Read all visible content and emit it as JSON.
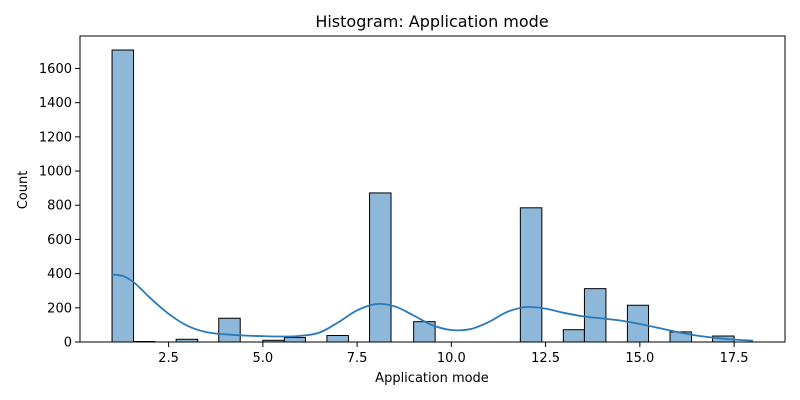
{
  "chart_data": {
    "type": "bar",
    "title": "Histogram: Application mode",
    "xlabel": "Application mode",
    "ylabel": "Count",
    "xlim": [
      0.15,
      18.85
    ],
    "ylim": [
      0,
      1790
    ],
    "grid": false,
    "bar_color": "#8db8da",
    "bar_edge_color": "#000000",
    "kde_color": "#2a7ab8",
    "x_ticks": [
      2.5,
      5.0,
      7.5,
      10.0,
      12.5,
      15.0,
      17.5
    ],
    "x_tick_labels": [
      "2.5",
      "5.0",
      "7.5",
      "10.0",
      "12.5",
      "15.0",
      "17.5"
    ],
    "y_ticks": [
      0,
      200,
      400,
      600,
      800,
      1000,
      1200,
      1400,
      1600
    ],
    "y_tick_labels": [
      "0",
      "200",
      "400",
      "600",
      "800",
      "1000",
      "1200",
      "1400",
      "1600"
    ],
    "bins": [
      {
        "x0": 1.0,
        "x1": 1.57,
        "count": 1708
      },
      {
        "x0": 1.57,
        "x1": 2.13,
        "count": 3
      },
      {
        "x0": 2.7,
        "x1": 3.27,
        "count": 16
      },
      {
        "x0": 3.83,
        "x1": 4.4,
        "count": 139
      },
      {
        "x0": 5.0,
        "x1": 5.57,
        "count": 10
      },
      {
        "x0": 5.57,
        "x1": 6.13,
        "count": 26
      },
      {
        "x0": 6.7,
        "x1": 7.27,
        "count": 38
      },
      {
        "x0": 7.83,
        "x1": 8.4,
        "count": 872
      },
      {
        "x0": 9.0,
        "x1": 9.57,
        "count": 119
      },
      {
        "x0": 11.83,
        "x1": 12.4,
        "count": 785
      },
      {
        "x0": 12.97,
        "x1": 13.53,
        "count": 72
      },
      {
        "x0": 13.53,
        "x1": 14.1,
        "count": 312
      },
      {
        "x0": 14.67,
        "x1": 15.23,
        "count": 215
      },
      {
        "x0": 15.8,
        "x1": 16.37,
        "count": 59
      },
      {
        "x0": 16.93,
        "x1": 17.5,
        "count": 35
      }
    ],
    "kde": {
      "x": [
        1.0,
        1.3,
        1.6,
        2.0,
        2.5,
        3.0,
        3.5,
        4.0,
        4.5,
        5.0,
        5.5,
        6.0,
        6.5,
        7.0,
        7.5,
        8.0,
        8.5,
        9.0,
        9.5,
        10.0,
        10.5,
        11.0,
        11.5,
        12.0,
        12.5,
        13.0,
        13.5,
        14.0,
        14.5,
        15.0,
        15.5,
        16.0,
        16.5,
        17.0,
        17.5,
        18.0
      ],
      "y": [
        395,
        385,
        345,
        260,
        165,
        95,
        58,
        45,
        38,
        34,
        32,
        36,
        55,
        115,
        185,
        222,
        208,
        155,
        98,
        70,
        75,
        118,
        178,
        205,
        195,
        170,
        150,
        138,
        125,
        105,
        82,
        58,
        38,
        24,
        14,
        8
      ]
    }
  }
}
